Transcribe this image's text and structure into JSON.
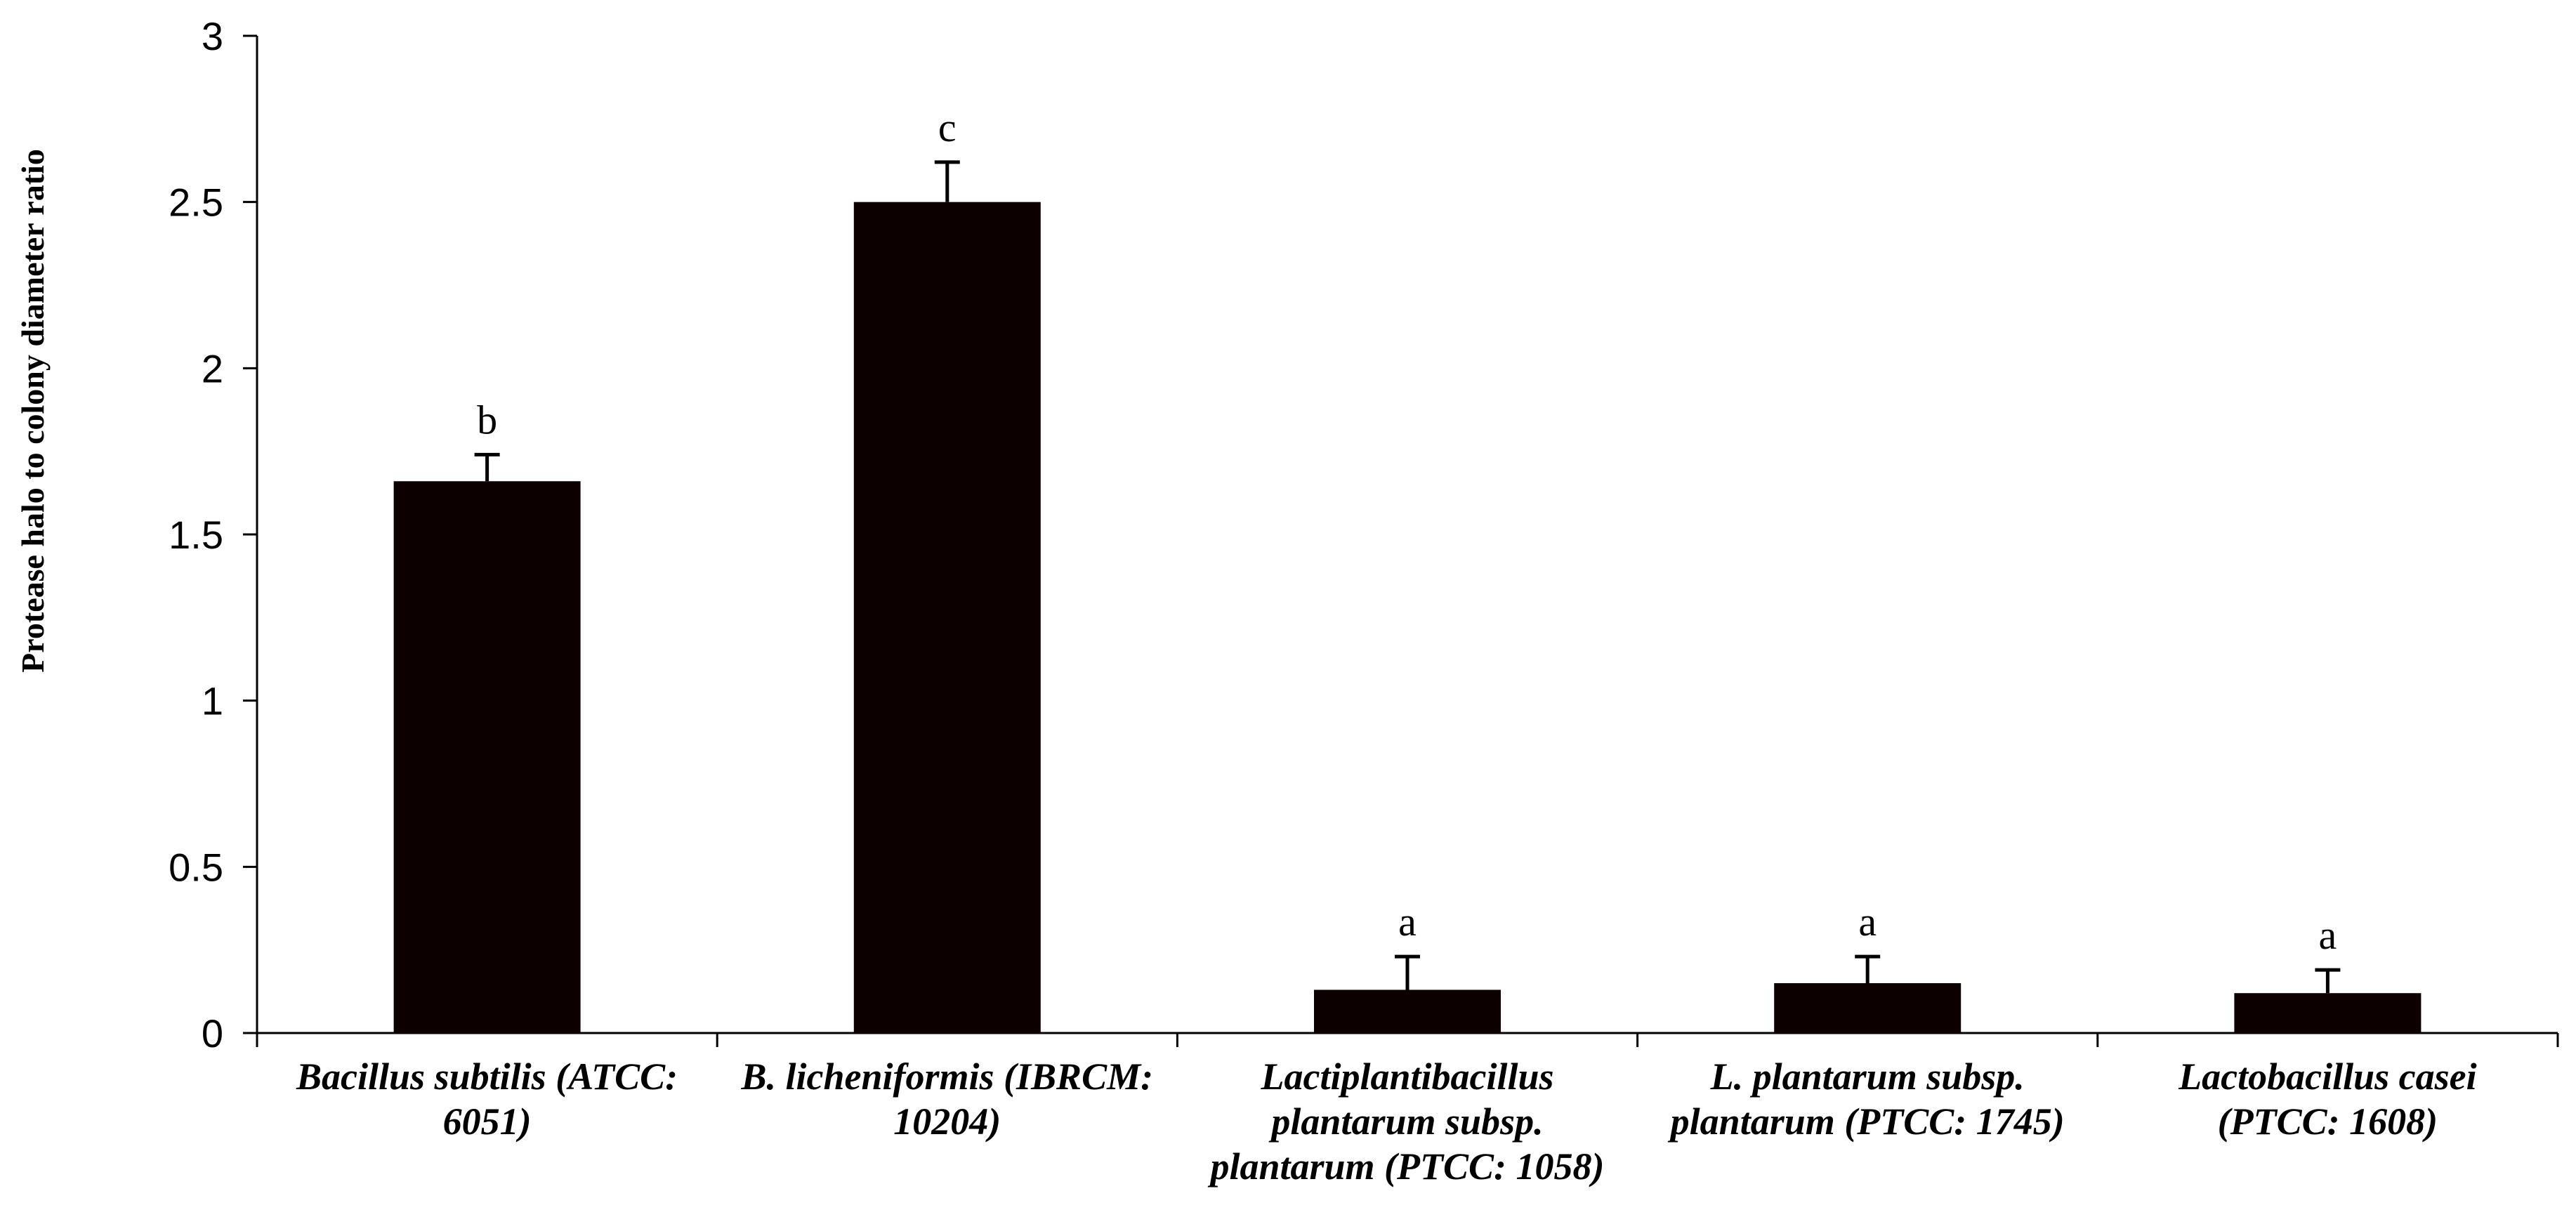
{
  "colors": {
    "bar": "#0c0000",
    "axis": "#000000",
    "background": "#ffffff"
  },
  "chart_data": {
    "type": "bar",
    "title": "",
    "xlabel": "",
    "ylabel": "Protease halo to colony diameter ratio",
    "ylim": [
      0,
      3
    ],
    "yticks": [
      "0",
      "0.5",
      "1",
      "1.5",
      "2",
      "2.5",
      "3"
    ],
    "grid": false,
    "legend": "none",
    "categories": [
      [
        "Bacillus subtilis (ATCC:",
        "6051)"
      ],
      [
        "B. licheniformis (IBRCM:",
        "10204)"
      ],
      [
        "Lactiplantibacillus",
        "plantarum subsp.",
        "plantarum (PTCC: 1058)"
      ],
      [
        "L. plantarum subsp.",
        "plantarum (PTCC: 1745)"
      ],
      [
        "Lactobacillus casei",
        "(PTCC: 1608)"
      ]
    ],
    "values": [
      1.66,
      2.5,
      0.13,
      0.15,
      0.12
    ],
    "errors": [
      0.08,
      0.12,
      0.1,
      0.08,
      0.07
    ],
    "significance": [
      "b",
      "c",
      "a",
      "a",
      "a"
    ]
  }
}
